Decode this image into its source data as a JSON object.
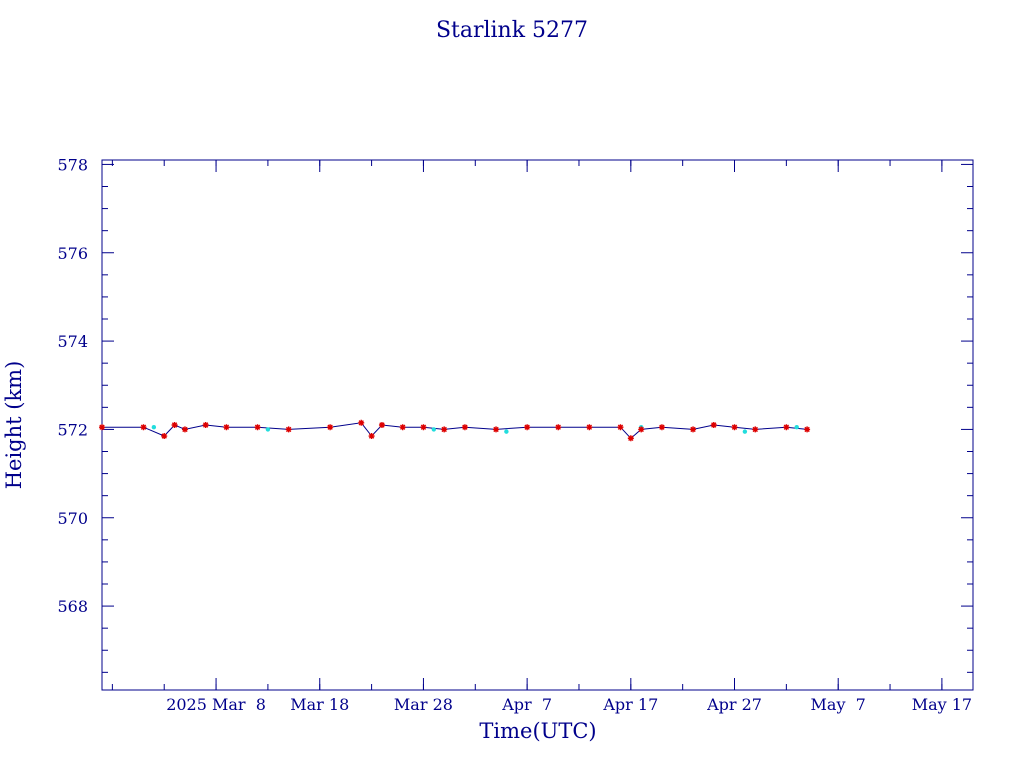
{
  "chart_data": {
    "type": "scatter",
    "title": "Starlink 5277",
    "xlabel": "Time(UTC)",
    "ylabel": "Height (km)",
    "xlim": [
      "2025-02-25",
      "2025-05-20"
    ],
    "ylim": [
      566.1,
      578.1
    ],
    "x_tick_labels": [
      "2025 Mar  8",
      "Mar 18",
      "Mar 28",
      "Apr  7",
      "Apr 17",
      "Apr 27",
      "May  7",
      "May 17"
    ],
    "x_tick_dates": [
      "2025-03-08",
      "2025-03-18",
      "2025-03-28",
      "2025-04-07",
      "2025-04-17",
      "2025-04-27",
      "2025-05-07",
      "2025-05-17"
    ],
    "y_tick_labels": [
      "568",
      "570",
      "572",
      "574",
      "576",
      "578"
    ],
    "y_ticks": [
      568,
      570,
      572,
      574,
      576,
      578
    ],
    "grid": false,
    "colors": {
      "axis": "#00008b",
      "text": "#00008b",
      "series_main": "#dd0000",
      "series_line": "#00008b",
      "series_alt": "#22dddd"
    },
    "series": [
      {
        "marker": "star",
        "color": "#dd0000",
        "x": [
          "2025-02-25",
          "2025-03-01",
          "2025-03-03",
          "2025-03-04",
          "2025-03-05",
          "2025-03-07",
          "2025-03-09",
          "2025-03-12",
          "2025-03-15",
          "2025-03-19",
          "2025-03-22",
          "2025-03-23",
          "2025-03-24",
          "2025-03-26",
          "2025-03-28",
          "2025-03-30",
          "2025-04-01",
          "2025-04-04",
          "2025-04-07",
          "2025-04-10",
          "2025-04-13",
          "2025-04-16",
          "2025-04-17",
          "2025-04-18",
          "2025-04-20",
          "2025-04-23",
          "2025-04-25",
          "2025-04-27",
          "2025-04-29",
          "2025-05-02",
          "2025-05-04"
        ],
        "y": [
          572.05,
          572.05,
          571.85,
          572.1,
          572.0,
          572.1,
          572.05,
          572.05,
          572.0,
          572.05,
          572.15,
          571.85,
          572.1,
          572.05,
          572.05,
          572.0,
          572.05,
          572.0,
          572.05,
          572.05,
          572.05,
          572.05,
          571.8,
          572.0,
          572.05,
          572.0,
          572.1,
          572.05,
          572.0,
          572.05,
          572.0
        ]
      },
      {
        "marker": "dot",
        "color": "#22dddd",
        "x": [
          "2025-03-02",
          "2025-03-13",
          "2025-03-29",
          "2025-04-05",
          "2025-04-18",
          "2025-04-28",
          "2025-05-03"
        ],
        "y": [
          572.05,
          572.0,
          572.0,
          571.95,
          572.05,
          571.95,
          572.05
        ]
      }
    ]
  }
}
